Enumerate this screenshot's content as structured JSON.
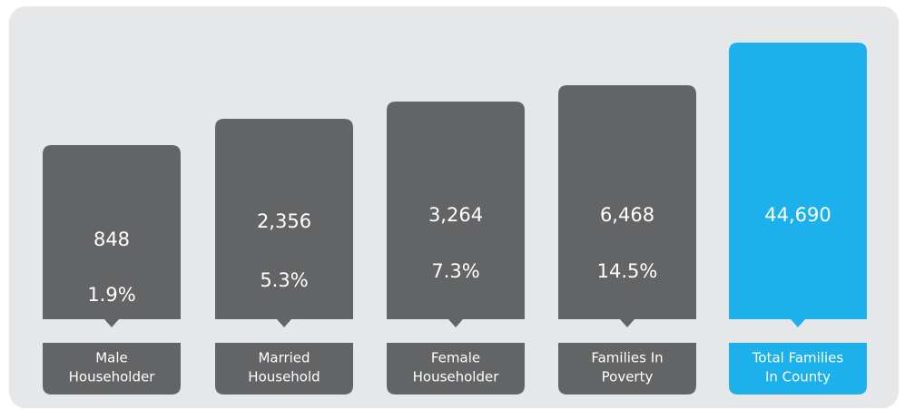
{
  "items": [
    {
      "count": "848",
      "percent": "1.9%",
      "label": [
        "Male",
        "Householder"
      ]
    },
    {
      "count": "2,356",
      "percent": "5.3%",
      "label": [
        "Married",
        "Household"
      ]
    },
    {
      "count": "3,264",
      "percent": "7.3%",
      "label": [
        "Female",
        "Householder"
      ]
    },
    {
      "count": "6,468",
      "percent": "14.5%",
      "label": [
        "Families In",
        "Poverty"
      ]
    },
    {
      "count": "44,690",
      "label": [
        "Total Families",
        "In County"
      ]
    }
  ]
}
